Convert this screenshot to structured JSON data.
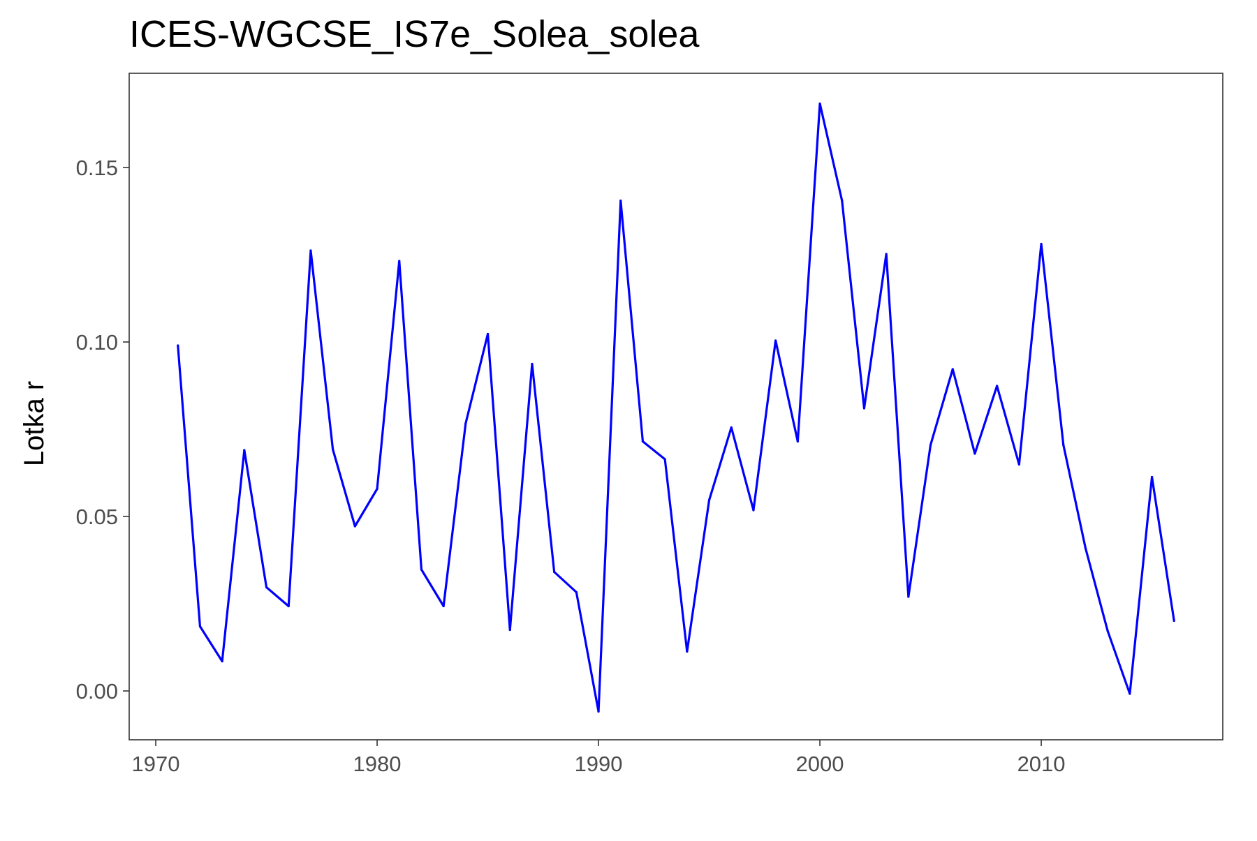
{
  "chart_data": {
    "type": "line",
    "title": "ICES-WGCSE_IS7e_Solea_solea",
    "xlabel": "",
    "ylabel": "Lotka r",
    "xlim": [
      1968.8,
      2018.2
    ],
    "ylim": [
      -0.014,
      0.177
    ],
    "x_ticks": [
      1970,
      1980,
      1990,
      2000,
      2010
    ],
    "x_tick_labels": [
      "1970",
      "1980",
      "1990",
      "2000",
      "2010"
    ],
    "y_ticks": [
      0,
      0.05,
      0.1,
      0.15
    ],
    "y_tick_labels": [
      "0.00",
      "0.05",
      "0.10",
      "0.15"
    ],
    "grid": false,
    "legend": "none",
    "colors": {
      "line": "#0000ff",
      "panel_border": "#333333",
      "axis_text": "#4d4d4d"
    },
    "series": [
      {
        "x": [
          1971,
          1972,
          1973,
          1974,
          1975,
          1976,
          1977,
          1978,
          1979,
          1980,
          1981,
          1982,
          1983,
          1984,
          1985,
          1986,
          1987,
          1988,
          1989,
          1990,
          1991,
          1992,
          1993,
          1994,
          1995,
          1996,
          1997,
          1998,
          1999,
          2000,
          2001,
          2002,
          2003,
          2004,
          2005,
          2006,
          2007,
          2008,
          2009,
          2010,
          2011,
          2012,
          2013,
          2014,
          2015,
          2016
        ],
        "values": [
          0.099,
          0.0185,
          0.0085,
          0.069,
          0.0297,
          0.0243,
          0.1262,
          0.0692,
          0.0472,
          0.0579,
          0.1232,
          0.0348,
          0.0243,
          0.0767,
          0.1023,
          0.0175,
          0.0937,
          0.0341,
          0.0283,
          -0.0059,
          0.1405,
          0.0715,
          0.0664,
          0.0113,
          0.0547,
          0.0755,
          0.0518,
          0.1004,
          0.0715,
          0.1683,
          0.1405,
          0.081,
          0.1252,
          0.027,
          0.0705,
          0.0922,
          0.068,
          0.0874,
          0.0649,
          0.1281,
          0.0705,
          0.0409,
          0.0172,
          -0.0008,
          0.0613,
          0.0201
        ]
      }
    ]
  }
}
